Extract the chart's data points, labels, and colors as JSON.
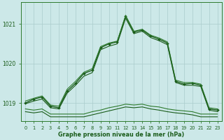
{
  "background_color": "#cce8e8",
  "grid_color": "#aacccc",
  "xlabel": "Graphe pression niveau de la mer (hPa)",
  "xlim": [
    -0.5,
    23.5
  ],
  "ylim": [
    1018.55,
    1021.55
  ],
  "yticks": [
    1019,
    1020,
    1021
  ],
  "xticks": [
    0,
    1,
    2,
    3,
    4,
    5,
    6,
    7,
    8,
    9,
    10,
    11,
    12,
    13,
    14,
    15,
    16,
    17,
    18,
    19,
    20,
    21,
    22,
    23
  ],
  "series": [
    {
      "x": [
        0,
        1,
        2,
        3,
        4,
        5,
        6,
        7,
        8,
        9,
        10,
        11,
        12,
        13,
        14,
        15,
        16,
        17,
        18,
        19,
        20,
        21,
        22,
        23
      ],
      "y": [
        1019.0,
        1019.1,
        1019.15,
        1018.92,
        1018.88,
        1019.3,
        1019.5,
        1019.75,
        1019.83,
        1020.4,
        1020.5,
        1020.55,
        1021.2,
        1020.8,
        1020.85,
        1020.7,
        1020.62,
        1020.52,
        1019.55,
        1019.48,
        1019.5,
        1019.45,
        1018.85,
        1018.82
      ],
      "marker": "D",
      "markersize": 2.0,
      "linewidth": 1.0,
      "color": "#1a5c1a"
    },
    {
      "x": [
        0,
        1,
        2,
        3,
        4,
        5,
        6,
        7,
        8,
        9,
        10,
        11,
        12,
        13,
        14,
        15,
        16,
        17,
        18,
        19,
        20,
        21,
        22,
        23
      ],
      "y": [
        1019.05,
        1019.12,
        1019.18,
        1018.95,
        1018.92,
        1019.35,
        1019.55,
        1019.78,
        1019.87,
        1020.43,
        1020.52,
        1020.57,
        1021.22,
        1020.82,
        1020.87,
        1020.72,
        1020.65,
        1020.55,
        1019.58,
        1019.52,
        1019.52,
        1019.48,
        1018.88,
        1018.85
      ],
      "marker": null,
      "markersize": 0,
      "linewidth": 0.8,
      "color": "#2d7a2d"
    },
    {
      "x": [
        0,
        1,
        2,
        3,
        4,
        5,
        6,
        7,
        8,
        9,
        10,
        11,
        12,
        13,
        14,
        15,
        16,
        17,
        18,
        19,
        20,
        21,
        22,
        23
      ],
      "y": [
        1018.98,
        1019.05,
        1019.1,
        1018.88,
        1018.85,
        1019.25,
        1019.45,
        1019.68,
        1019.77,
        1020.35,
        1020.44,
        1020.5,
        1021.15,
        1020.76,
        1020.82,
        1020.66,
        1020.58,
        1020.48,
        1019.52,
        1019.45,
        1019.45,
        1019.42,
        1018.82,
        1018.78
      ],
      "marker": null,
      "markersize": 0,
      "linewidth": 0.8,
      "color": "#1a5c1a"
    },
    {
      "x": [
        0,
        1,
        2,
        3,
        4,
        5,
        6,
        7,
        8,
        9,
        10,
        11,
        12,
        13,
        14,
        15,
        16,
        17,
        18,
        19,
        20,
        21,
        22,
        23
      ],
      "y": [
        1018.85,
        1018.82,
        1018.85,
        1018.72,
        1018.72,
        1018.72,
        1018.72,
        1018.72,
        1018.78,
        1018.82,
        1018.88,
        1018.92,
        1018.97,
        1018.95,
        1018.97,
        1018.92,
        1018.9,
        1018.85,
        1018.82,
        1018.8,
        1018.78,
        1018.72,
        1018.72,
        1018.72
      ],
      "marker": null,
      "markersize": 0,
      "linewidth": 0.8,
      "color": "#2d7a2d"
    },
    {
      "x": [
        0,
        1,
        2,
        3,
        4,
        5,
        6,
        7,
        8,
        9,
        10,
        11,
        12,
        13,
        14,
        15,
        16,
        17,
        18,
        19,
        20,
        21,
        22,
        23
      ],
      "y": [
        1018.78,
        1018.75,
        1018.78,
        1018.65,
        1018.65,
        1018.65,
        1018.65,
        1018.65,
        1018.7,
        1018.75,
        1018.8,
        1018.85,
        1018.9,
        1018.88,
        1018.9,
        1018.85,
        1018.82,
        1018.78,
        1018.75,
        1018.73,
        1018.7,
        1018.65,
        1018.65,
        1018.65
      ],
      "marker": null,
      "markersize": 0,
      "linewidth": 0.8,
      "color": "#1a5c1a"
    }
  ]
}
